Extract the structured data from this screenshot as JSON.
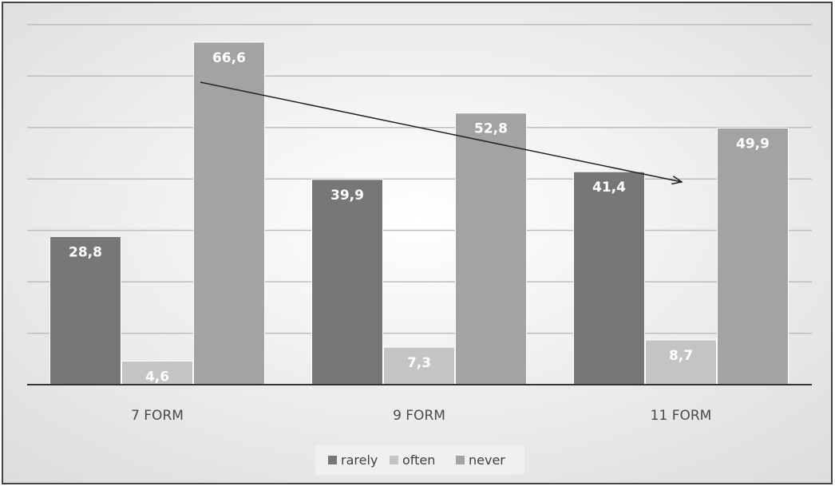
{
  "chart_data": {
    "type": "bar",
    "categories": [
      "7 FORM",
      "9 FORM",
      "11 FORM"
    ],
    "series": [
      {
        "name": "rarely",
        "values": [
          28.8,
          39.9,
          41.4
        ],
        "labels": [
          "28,8",
          "39,9",
          "41,4"
        ],
        "color": "#777777"
      },
      {
        "name": "often",
        "values": [
          4.6,
          7.3,
          8.7
        ],
        "labels": [
          "4,6",
          "7,3",
          "8,7"
        ],
        "color": "#c4c4c4"
      },
      {
        "name": "never",
        "values": [
          66.6,
          52.8,
          49.9
        ],
        "labels": [
          "66,6",
          "52,8",
          "49,9"
        ],
        "color": "#a3a3a3"
      }
    ],
    "ylim": [
      0,
      70
    ],
    "grid": true,
    "legend_position": "bottom",
    "annotation": "arrow from top of 7 FORM never bar descending toward 11 FORM"
  }
}
